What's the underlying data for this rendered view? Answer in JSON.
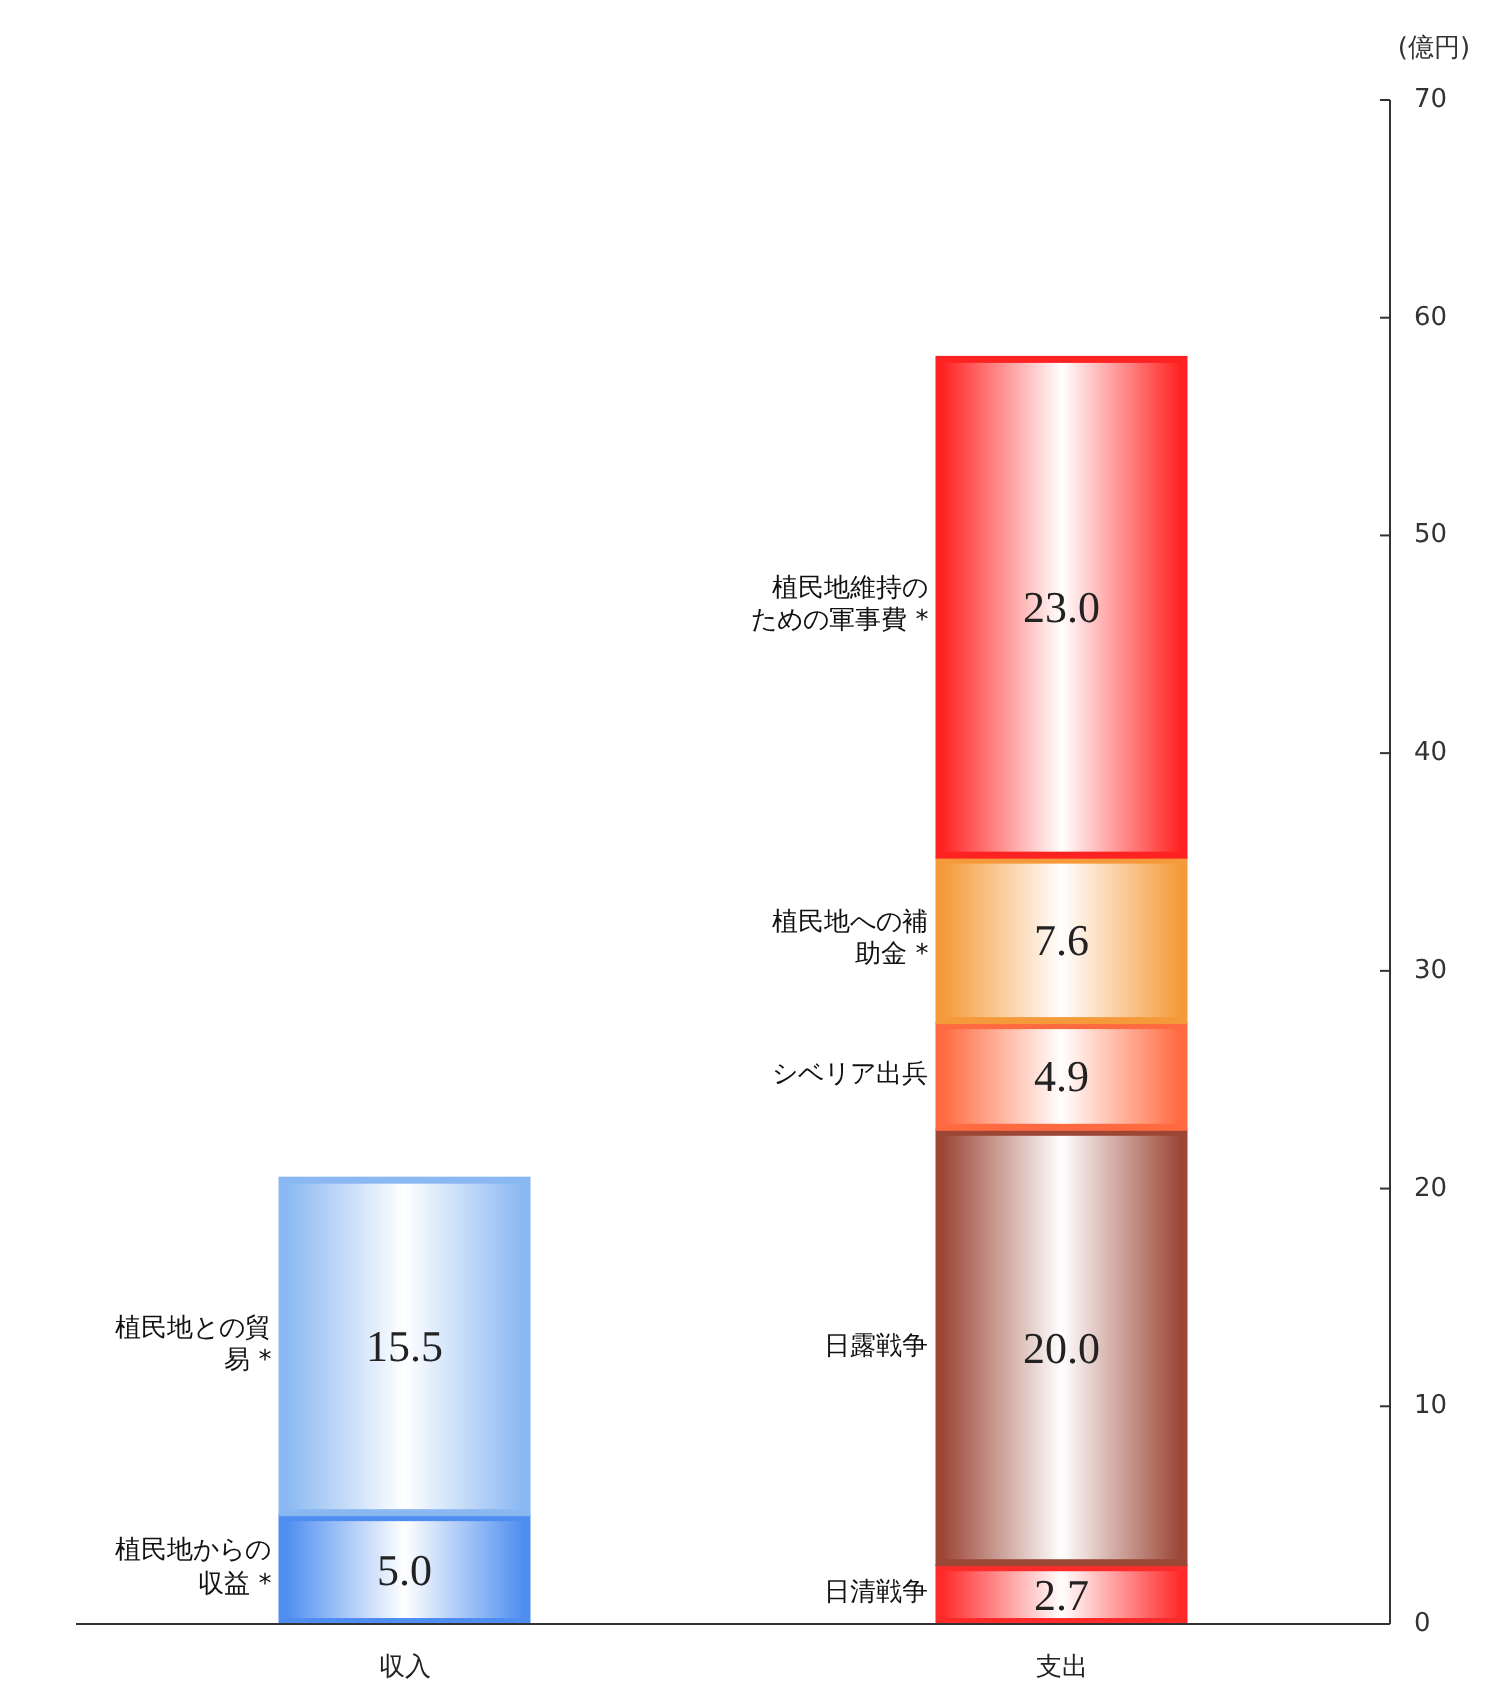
{
  "chart_data": {
    "type": "bar",
    "stacked": true,
    "categories": [
      "収入",
      "支出"
    ],
    "ylabel": "(億円)",
    "ylim": [
      0,
      70
    ],
    "yticks": [
      0,
      10,
      20,
      30,
      40,
      50,
      60,
      70
    ],
    "grid": false,
    "series": [
      {
        "name": "植民地からの収益 *",
        "color": "#4f8ef0",
        "values": [
          5.0,
          null
        ],
        "value_labels": [
          "5.0",
          null
        ]
      },
      {
        "name": "植民地との貿易 *",
        "color": "#8ab8f2",
        "values": [
          15.5,
          null
        ],
        "value_labels": [
          "15.5",
          null
        ]
      },
      {
        "name": "日清戦争",
        "color": "#ff2a2a",
        "values": [
          null,
          2.7
        ],
        "value_labels": [
          null,
          "2.7"
        ]
      },
      {
        "name": "日露戦争",
        "color": "#9c4636",
        "values": [
          null,
          20.0
        ],
        "value_labels": [
          null,
          "20.0"
        ]
      },
      {
        "name": "シベリア出兵",
        "color": "#ff6a40",
        "values": [
          null,
          4.9
        ],
        "value_labels": [
          null,
          "4.9"
        ]
      },
      {
        "name": "植民地への補助金 *",
        "color": "#f59a3a",
        "values": [
          null,
          7.6
        ],
        "value_labels": [
          null,
          "7.6"
        ]
      },
      {
        "name": "植民地維持のための軍事費 *",
        "color": "#ff2222",
        "values": [
          null,
          23.0
        ],
        "value_labels": [
          null,
          "23.0"
        ]
      }
    ]
  }
}
